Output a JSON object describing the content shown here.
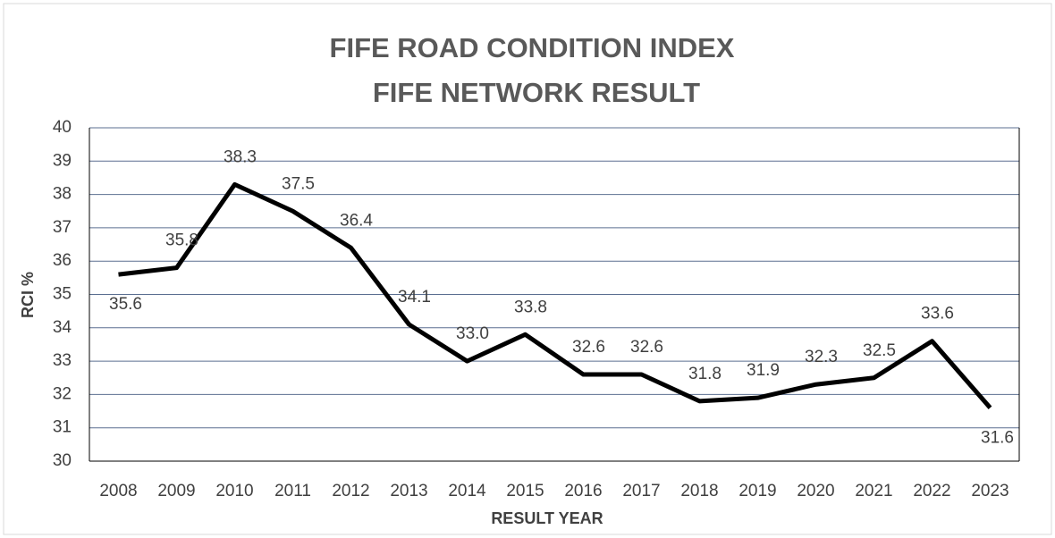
{
  "chart_data": {
    "type": "line",
    "title": "FIFE ROAD CONDITION INDEX",
    "subtitle": "FIFE NETWORK RESULT",
    "x_label": "RESULT  YEAR",
    "y_label": "RCI  %",
    "categories": [
      "2008",
      "2009",
      "2010",
      "2011",
      "2012",
      "2013",
      "2014",
      "2015",
      "2016",
      "2017",
      "2018",
      "2019",
      "2020",
      "2021",
      "2022",
      "2023"
    ],
    "values": [
      35.6,
      35.8,
      38.3,
      37.5,
      36.4,
      34.1,
      33.0,
      33.8,
      32.6,
      32.6,
      31.8,
      31.9,
      32.3,
      32.5,
      33.6,
      31.6
    ],
    "value_labels": [
      "35.6",
      "35.8",
      "38.3",
      "37.5",
      "36.4",
      "34.1",
      "33.0",
      "33.8",
      "32.6",
      "32.6",
      "31.8",
      "31.9",
      "32.3",
      "32.5",
      "33.6",
      "31.6"
    ],
    "color": "#000000",
    "ylim": [
      30,
      40
    ],
    "yticks": [
      30,
      31,
      32,
      33,
      34,
      35,
      36,
      37,
      38,
      39,
      40
    ],
    "grid": true
  }
}
